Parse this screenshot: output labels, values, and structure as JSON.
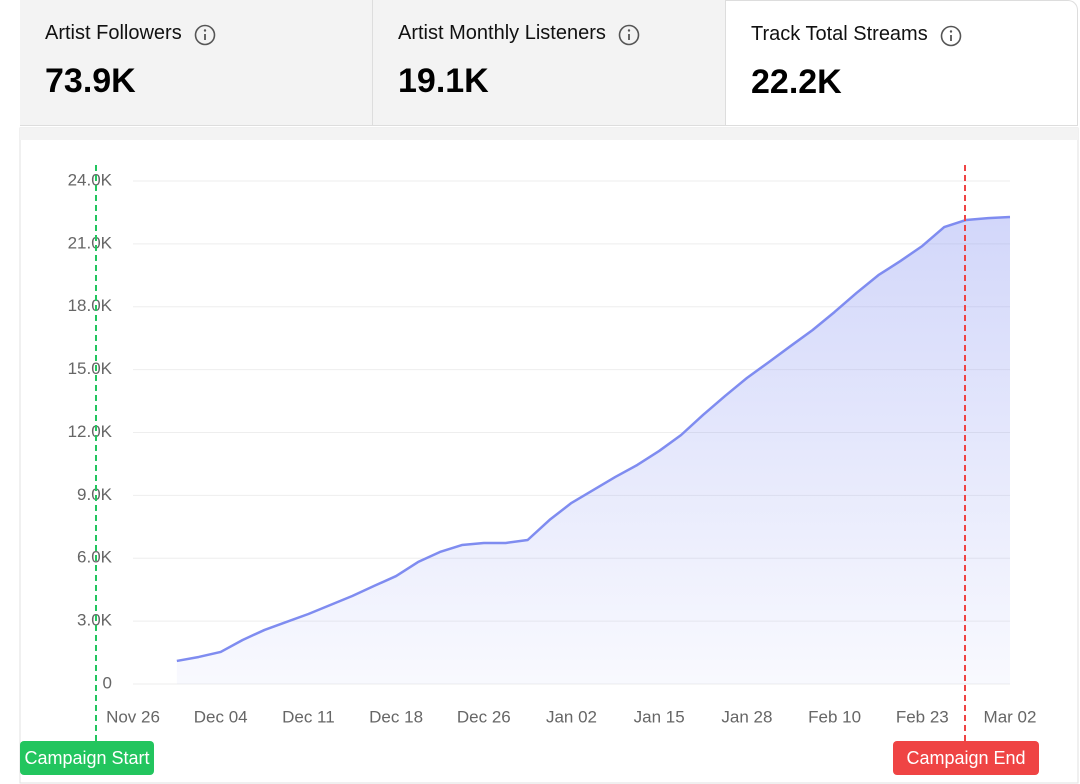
{
  "cards": [
    {
      "title": "Artist Followers",
      "value": "73.9K"
    },
    {
      "title": "Artist Monthly Listeners",
      "value": "19.1K"
    },
    {
      "title": "Track Total Streams",
      "value": "22.2K"
    }
  ],
  "chart_data": {
    "type": "area",
    "categories": [
      "Nov 26",
      null,
      null,
      null,
      "Dec 04",
      null,
      null,
      null,
      "Dec 11",
      null,
      null,
      null,
      "Dec 18",
      null,
      null,
      null,
      "Dec 26",
      null,
      null,
      null,
      "Jan 02",
      null,
      null,
      null,
      "Jan 15",
      null,
      null,
      null,
      "Jan 28",
      null,
      null,
      null,
      "Feb 10",
      null,
      null,
      null,
      "Feb 23",
      null,
      null,
      null,
      "Mar 02"
    ],
    "series": [
      {
        "color": "#7f8cf0",
        "values": [
          null,
          null,
          1100,
          1290,
          1530,
          2100,
          2580,
          2960,
          3340,
          3770,
          4200,
          4680,
          5150,
          5820,
          6300,
          6630,
          6730,
          6730,
          6870,
          7830,
          8640,
          9260,
          9880,
          10450,
          11120,
          11880,
          12840,
          13740,
          14600,
          15360,
          16130,
          16890,
          17750,
          18660,
          19510,
          20180,
          20900,
          21800,
          22140,
          22230,
          22280
        ]
      }
    ],
    "ylim": [
      0,
      24000
    ],
    "yticks": [
      0,
      {
        "value": 3000,
        "label": "3.0K"
      },
      {
        "value": 6000,
        "label": "6.0K"
      },
      {
        "value": 9000,
        "label": "9.0K"
      },
      {
        "value": 12000,
        "label": "12.0K"
      },
      {
        "value": 15000,
        "label": "15.0K"
      },
      {
        "value": 18000,
        "label": "18.0K"
      },
      {
        "value": 21000,
        "label": "21.0K"
      },
      {
        "value": 24000,
        "label": "24.0K"
      }
    ],
    "grid": true,
    "annotations": [
      {
        "text": "Campaign Start",
        "color": "#22c55e"
      },
      {
        "text": "Campaign End",
        "color": "#ef4444"
      }
    ]
  }
}
